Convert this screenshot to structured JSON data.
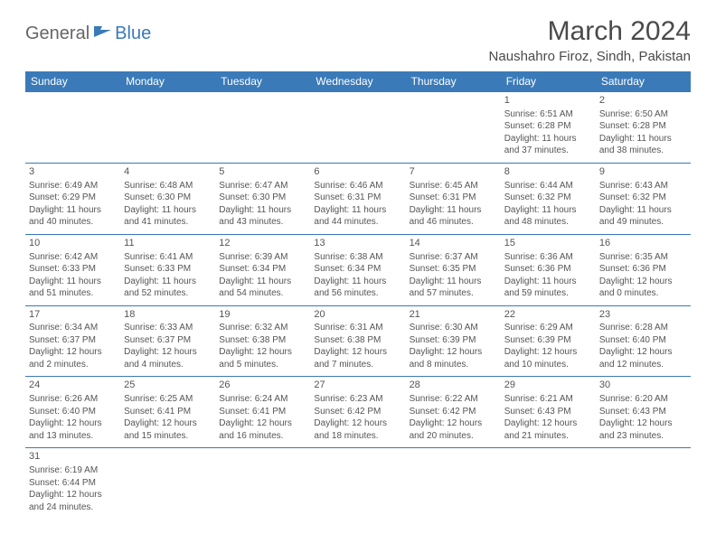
{
  "logo": {
    "general": "General",
    "blue": "Blue"
  },
  "title": "March 2024",
  "location": "Naushahro Firoz, Sindh, Pakistan",
  "colors": {
    "header_bg": "#3a7ab8",
    "header_text": "#ffffff",
    "border": "#3a7ab8",
    "body_text": "#555555",
    "title_text": "#4a4a4a",
    "logo_gray": "#666666",
    "logo_blue": "#3a7ab8",
    "background": "#ffffff"
  },
  "weekdays": [
    "Sunday",
    "Monday",
    "Tuesday",
    "Wednesday",
    "Thursday",
    "Friday",
    "Saturday"
  ],
  "weeks": [
    [
      null,
      null,
      null,
      null,
      null,
      {
        "d": "1",
        "sr": "Sunrise: 6:51 AM",
        "ss": "Sunset: 6:28 PM",
        "dl1": "Daylight: 11 hours",
        "dl2": "and 37 minutes."
      },
      {
        "d": "2",
        "sr": "Sunrise: 6:50 AM",
        "ss": "Sunset: 6:28 PM",
        "dl1": "Daylight: 11 hours",
        "dl2": "and 38 minutes."
      }
    ],
    [
      {
        "d": "3",
        "sr": "Sunrise: 6:49 AM",
        "ss": "Sunset: 6:29 PM",
        "dl1": "Daylight: 11 hours",
        "dl2": "and 40 minutes."
      },
      {
        "d": "4",
        "sr": "Sunrise: 6:48 AM",
        "ss": "Sunset: 6:30 PM",
        "dl1": "Daylight: 11 hours",
        "dl2": "and 41 minutes."
      },
      {
        "d": "5",
        "sr": "Sunrise: 6:47 AM",
        "ss": "Sunset: 6:30 PM",
        "dl1": "Daylight: 11 hours",
        "dl2": "and 43 minutes."
      },
      {
        "d": "6",
        "sr": "Sunrise: 6:46 AM",
        "ss": "Sunset: 6:31 PM",
        "dl1": "Daylight: 11 hours",
        "dl2": "and 44 minutes."
      },
      {
        "d": "7",
        "sr": "Sunrise: 6:45 AM",
        "ss": "Sunset: 6:31 PM",
        "dl1": "Daylight: 11 hours",
        "dl2": "and 46 minutes."
      },
      {
        "d": "8",
        "sr": "Sunrise: 6:44 AM",
        "ss": "Sunset: 6:32 PM",
        "dl1": "Daylight: 11 hours",
        "dl2": "and 48 minutes."
      },
      {
        "d": "9",
        "sr": "Sunrise: 6:43 AM",
        "ss": "Sunset: 6:32 PM",
        "dl1": "Daylight: 11 hours",
        "dl2": "and 49 minutes."
      }
    ],
    [
      {
        "d": "10",
        "sr": "Sunrise: 6:42 AM",
        "ss": "Sunset: 6:33 PM",
        "dl1": "Daylight: 11 hours",
        "dl2": "and 51 minutes."
      },
      {
        "d": "11",
        "sr": "Sunrise: 6:41 AM",
        "ss": "Sunset: 6:33 PM",
        "dl1": "Daylight: 11 hours",
        "dl2": "and 52 minutes."
      },
      {
        "d": "12",
        "sr": "Sunrise: 6:39 AM",
        "ss": "Sunset: 6:34 PM",
        "dl1": "Daylight: 11 hours",
        "dl2": "and 54 minutes."
      },
      {
        "d": "13",
        "sr": "Sunrise: 6:38 AM",
        "ss": "Sunset: 6:34 PM",
        "dl1": "Daylight: 11 hours",
        "dl2": "and 56 minutes."
      },
      {
        "d": "14",
        "sr": "Sunrise: 6:37 AM",
        "ss": "Sunset: 6:35 PM",
        "dl1": "Daylight: 11 hours",
        "dl2": "and 57 minutes."
      },
      {
        "d": "15",
        "sr": "Sunrise: 6:36 AM",
        "ss": "Sunset: 6:36 PM",
        "dl1": "Daylight: 11 hours",
        "dl2": "and 59 minutes."
      },
      {
        "d": "16",
        "sr": "Sunrise: 6:35 AM",
        "ss": "Sunset: 6:36 PM",
        "dl1": "Daylight: 12 hours",
        "dl2": "and 0 minutes."
      }
    ],
    [
      {
        "d": "17",
        "sr": "Sunrise: 6:34 AM",
        "ss": "Sunset: 6:37 PM",
        "dl1": "Daylight: 12 hours",
        "dl2": "and 2 minutes."
      },
      {
        "d": "18",
        "sr": "Sunrise: 6:33 AM",
        "ss": "Sunset: 6:37 PM",
        "dl1": "Daylight: 12 hours",
        "dl2": "and 4 minutes."
      },
      {
        "d": "19",
        "sr": "Sunrise: 6:32 AM",
        "ss": "Sunset: 6:38 PM",
        "dl1": "Daylight: 12 hours",
        "dl2": "and 5 minutes."
      },
      {
        "d": "20",
        "sr": "Sunrise: 6:31 AM",
        "ss": "Sunset: 6:38 PM",
        "dl1": "Daylight: 12 hours",
        "dl2": "and 7 minutes."
      },
      {
        "d": "21",
        "sr": "Sunrise: 6:30 AM",
        "ss": "Sunset: 6:39 PM",
        "dl1": "Daylight: 12 hours",
        "dl2": "and 8 minutes."
      },
      {
        "d": "22",
        "sr": "Sunrise: 6:29 AM",
        "ss": "Sunset: 6:39 PM",
        "dl1": "Daylight: 12 hours",
        "dl2": "and 10 minutes."
      },
      {
        "d": "23",
        "sr": "Sunrise: 6:28 AM",
        "ss": "Sunset: 6:40 PM",
        "dl1": "Daylight: 12 hours",
        "dl2": "and 12 minutes."
      }
    ],
    [
      {
        "d": "24",
        "sr": "Sunrise: 6:26 AM",
        "ss": "Sunset: 6:40 PM",
        "dl1": "Daylight: 12 hours",
        "dl2": "and 13 minutes."
      },
      {
        "d": "25",
        "sr": "Sunrise: 6:25 AM",
        "ss": "Sunset: 6:41 PM",
        "dl1": "Daylight: 12 hours",
        "dl2": "and 15 minutes."
      },
      {
        "d": "26",
        "sr": "Sunrise: 6:24 AM",
        "ss": "Sunset: 6:41 PM",
        "dl1": "Daylight: 12 hours",
        "dl2": "and 16 minutes."
      },
      {
        "d": "27",
        "sr": "Sunrise: 6:23 AM",
        "ss": "Sunset: 6:42 PM",
        "dl1": "Daylight: 12 hours",
        "dl2": "and 18 minutes."
      },
      {
        "d": "28",
        "sr": "Sunrise: 6:22 AM",
        "ss": "Sunset: 6:42 PM",
        "dl1": "Daylight: 12 hours",
        "dl2": "and 20 minutes."
      },
      {
        "d": "29",
        "sr": "Sunrise: 6:21 AM",
        "ss": "Sunset: 6:43 PM",
        "dl1": "Daylight: 12 hours",
        "dl2": "and 21 minutes."
      },
      {
        "d": "30",
        "sr": "Sunrise: 6:20 AM",
        "ss": "Sunset: 6:43 PM",
        "dl1": "Daylight: 12 hours",
        "dl2": "and 23 minutes."
      }
    ],
    [
      {
        "d": "31",
        "sr": "Sunrise: 6:19 AM",
        "ss": "Sunset: 6:44 PM",
        "dl1": "Daylight: 12 hours",
        "dl2": "and 24 minutes."
      },
      null,
      null,
      null,
      null,
      null,
      null
    ]
  ]
}
